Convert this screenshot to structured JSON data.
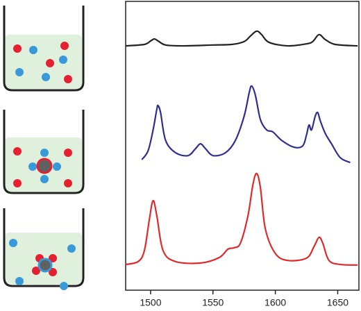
{
  "chart_data": {
    "type": "line",
    "xlim": [
      1480,
      1667
    ],
    "xticks": [
      1500,
      1550,
      1600,
      1650
    ],
    "ylim": [
      0,
      100
    ],
    "series": [
      {
        "color": "#222222",
        "x": [
          1480,
          1495,
          1500,
          1503,
          1506,
          1512,
          1525,
          1550,
          1565,
          1575,
          1580,
          1585,
          1589,
          1595,
          1610,
          1625,
          1630,
          1635,
          1640,
          1648,
          1666
        ],
        "values": [
          84.6,
          85.1,
          86.3,
          87.0,
          86.3,
          84.9,
          84.6,
          84.9,
          85.1,
          86.1,
          88.0,
          89.7,
          88.5,
          85.8,
          84.6,
          85.3,
          86.1,
          88.5,
          86.8,
          85.1,
          84.6
        ]
      },
      {
        "color": "#2e2e8f",
        "x": [
          1493,
          1498,
          1502,
          1505,
          1506,
          1508,
          1512,
          1520,
          1530,
          1536,
          1540,
          1544,
          1550,
          1560,
          1568,
          1575,
          1579,
          1581,
          1584,
          1588,
          1593,
          1598,
          1605,
          1615,
          1622,
          1625,
          1627,
          1629,
          1632,
          1634,
          1636,
          1640,
          1645,
          1652,
          1660
        ],
        "values": [
          45.2,
          48.3,
          55.5,
          62.7,
          63.9,
          61.5,
          51.9,
          47.6,
          46.6,
          49.0,
          50.7,
          49.0,
          46.6,
          47.6,
          51.9,
          60.3,
          68.3,
          70.7,
          67.5,
          59.1,
          55.5,
          54.8,
          51.9,
          49.5,
          50.0,
          53.8,
          57.2,
          55.5,
          60.3,
          61.5,
          58.7,
          54.3,
          50.7,
          45.9,
          44.2
        ]
      },
      {
        "color": "#e02a2a",
        "x": [
          1480,
          1490,
          1495,
          1499,
          1502,
          1505,
          1510,
          1520,
          1540,
          1555,
          1562,
          1567,
          1572,
          1578,
          1582,
          1585,
          1588,
          1592,
          1600,
          1610,
          1625,
          1631,
          1635,
          1638,
          1643,
          1652,
          1666
        ],
        "values": [
          8.9,
          9.9,
          13.7,
          24.5,
          31.0,
          25.7,
          13.7,
          9.9,
          9.4,
          11.3,
          14.2,
          14.7,
          16.3,
          25.7,
          36.5,
          40.4,
          35.6,
          21.2,
          12.7,
          10.3,
          11.1,
          15.1,
          18.3,
          16.3,
          10.3,
          8.9,
          8.7
        ]
      }
    ]
  }
}
